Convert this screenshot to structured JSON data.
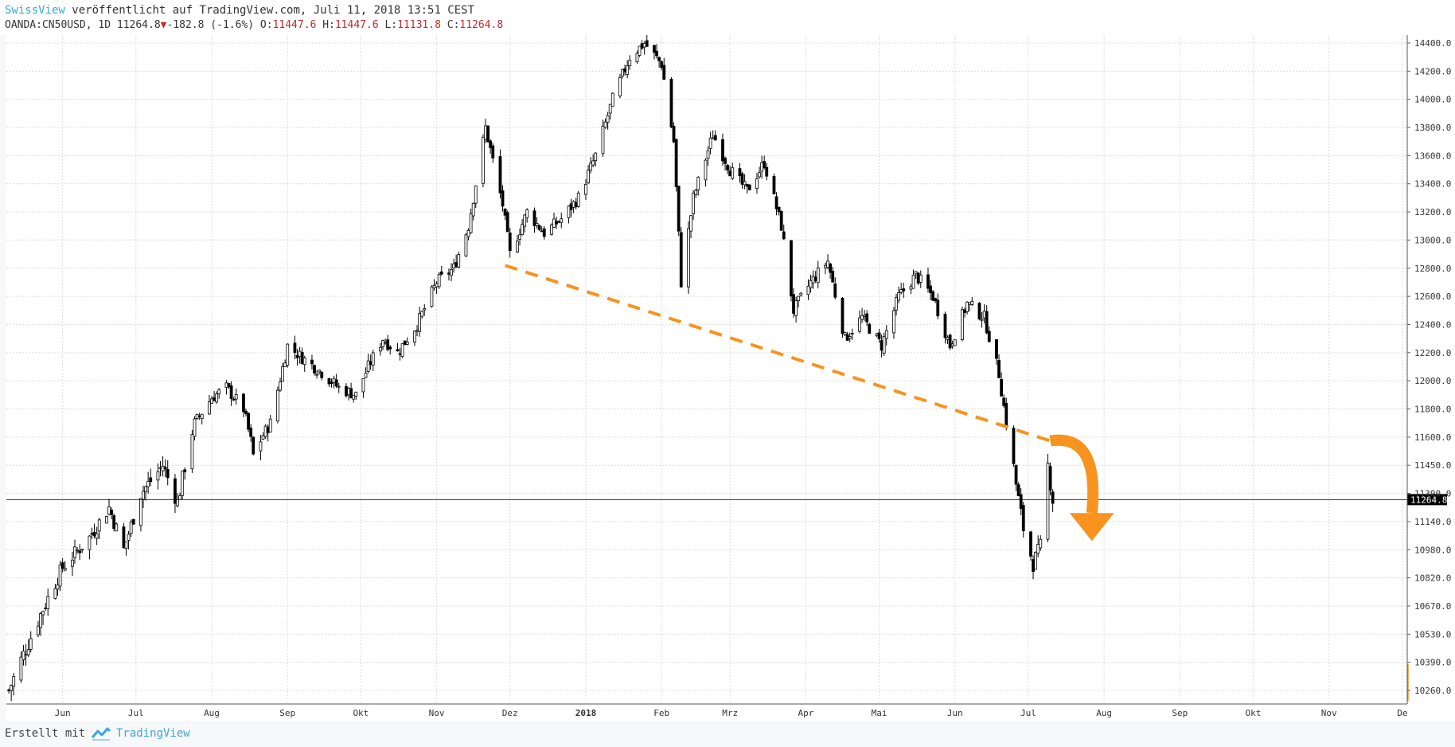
{
  "header": {
    "author": "SwissView",
    "published_text": "veröffentlicht auf TradingView.com, Juli 11, 2018 13:51 CEST",
    "symbol_text": "OANDA:CN50USD, 1D 11264.8",
    "change_arrow": "▼",
    "change_text": "-182.8 (-1.6%)",
    "o_label": "O:",
    "o_value": "11447.6",
    "h_label": "H:",
    "h_value": "11447.6",
    "l_label": "L:",
    "l_value": "11131.8",
    "c_label": "C:",
    "c_value": "11264.8"
  },
  "footer": {
    "made_with": "Erstellt mit",
    "brand": "TradingView"
  },
  "colors": {
    "candle": "#000000",
    "trendline": "#f7931e",
    "arrow": "#f7931e",
    "price_label_bg": "#000000",
    "link": "#3aa7d8",
    "down": "#c62828"
  },
  "chart_data": {
    "type": "candlestick",
    "symbol": "OANDA:CN50USD",
    "interval": "1D",
    "last_price": 11264.8,
    "last_price_label": "11264.8",
    "y_ticks": [
      {
        "label": "14400.0",
        "value": 14400
      },
      {
        "label": "14200.0",
        "value": 14200
      },
      {
        "label": "14000.0",
        "value": 14000
      },
      {
        "label": "13800.0",
        "value": 13800
      },
      {
        "label": "13600.0",
        "value": 13600
      },
      {
        "label": "13400.0",
        "value": 13400
      },
      {
        "label": "13200.0",
        "value": 13200
      },
      {
        "label": "13000.0",
        "value": 13000
      },
      {
        "label": "12800.0",
        "value": 12800
      },
      {
        "label": "12600.0",
        "value": 12600
      },
      {
        "label": "12400.0",
        "value": 12400
      },
      {
        "label": "12200.0",
        "value": 12200
      },
      {
        "label": "12000.0",
        "value": 12000
      },
      {
        "label": "11800.0",
        "value": 11800
      },
      {
        "label": "11600.0",
        "value": 11600
      },
      {
        "label": "11450.0",
        "value": 11450
      },
      {
        "label": "11300.0",
        "value": 11300
      },
      {
        "label": "11140.0",
        "value": 11140
      },
      {
        "label": "10980.0",
        "value": 10980
      },
      {
        "label": "10820.0",
        "value": 10820
      },
      {
        "label": "10670.0",
        "value": 10670
      },
      {
        "label": "10530.0",
        "value": 10530
      },
      {
        "label": "10390.0",
        "value": 10390
      },
      {
        "label": "10260.0",
        "value": 10260
      }
    ],
    "x_ticks": [
      {
        "label": "Jun",
        "date": "2017-06-01"
      },
      {
        "label": "Jul",
        "date": "2017-07-01"
      },
      {
        "label": "Aug",
        "date": "2017-08-01"
      },
      {
        "label": "Sep",
        "date": "2017-09-01"
      },
      {
        "label": "Okt",
        "date": "2017-10-01"
      },
      {
        "label": "Nov",
        "date": "2017-11-01"
      },
      {
        "label": "Dez",
        "date": "2017-12-01"
      },
      {
        "label": "2018",
        "date": "2018-01-01"
      },
      {
        "label": "Feb",
        "date": "2018-02-01"
      },
      {
        "label": "Mrz",
        "date": "2018-03-01"
      },
      {
        "label": "Apr",
        "date": "2018-04-01"
      },
      {
        "label": "Mai",
        "date": "2018-05-01"
      },
      {
        "label": "Jun",
        "date": "2018-06-01"
      },
      {
        "label": "Jul",
        "date": "2018-07-01"
      },
      {
        "label": "Aug",
        "date": "2018-08-01"
      },
      {
        "label": "Sep",
        "date": "2018-09-01"
      },
      {
        "label": "Okt",
        "date": "2018-10-01"
      },
      {
        "label": "Nov",
        "date": "2018-11-01"
      },
      {
        "label": "De",
        "date": "2018-12-01"
      }
    ],
    "x_range": [
      "2017-05-09",
      "2018-12-03"
    ],
    "closes": [
      {
        "date": "2017-05-10",
        "close": 10260
      },
      {
        "date": "2017-05-22",
        "close": 10600
      },
      {
        "date": "2017-06-01",
        "close": 10880
      },
      {
        "date": "2017-06-12",
        "close": 11050
      },
      {
        "date": "2017-06-20",
        "close": 11220
      },
      {
        "date": "2017-06-26",
        "close": 10980
      },
      {
        "date": "2017-07-03",
        "close": 11300
      },
      {
        "date": "2017-07-12",
        "close": 11450
      },
      {
        "date": "2017-07-18",
        "close": 11250
      },
      {
        "date": "2017-07-25",
        "close": 11700
      },
      {
        "date": "2017-08-01",
        "close": 11880
      },
      {
        "date": "2017-08-07",
        "close": 11950
      },
      {
        "date": "2017-08-14",
        "close": 11800
      },
      {
        "date": "2017-08-18",
        "close": 11500
      },
      {
        "date": "2017-08-25",
        "close": 11700
      },
      {
        "date": "2017-09-01",
        "close": 12250
      },
      {
        "date": "2017-09-08",
        "close": 12150
      },
      {
        "date": "2017-09-15",
        "close": 12060
      },
      {
        "date": "2017-09-22",
        "close": 11950
      },
      {
        "date": "2017-09-29",
        "close": 11900
      },
      {
        "date": "2017-10-04",
        "close": 12100
      },
      {
        "date": "2017-10-10",
        "close": 12300
      },
      {
        "date": "2017-10-16",
        "close": 12200
      },
      {
        "date": "2017-10-24",
        "close": 12400
      },
      {
        "date": "2017-11-01",
        "close": 12700
      },
      {
        "date": "2017-11-08",
        "close": 12800
      },
      {
        "date": "2017-11-14",
        "close": 13100
      },
      {
        "date": "2017-11-21",
        "close": 13800
      },
      {
        "date": "2017-11-28",
        "close": 13250
      },
      {
        "date": "2017-12-01",
        "close": 12900
      },
      {
        "date": "2017-12-08",
        "close": 13200
      },
      {
        "date": "2017-12-15",
        "close": 13050
      },
      {
        "date": "2017-12-22",
        "close": 13150
      },
      {
        "date": "2017-12-29",
        "close": 13300
      },
      {
        "date": "2018-01-05",
        "close": 13600
      },
      {
        "date": "2018-01-12",
        "close": 14000
      },
      {
        "date": "2018-01-19",
        "close": 14300
      },
      {
        "date": "2018-01-25",
        "close": 14400
      },
      {
        "date": "2018-02-01",
        "close": 14250
      },
      {
        "date": "2018-02-06",
        "close": 13700
      },
      {
        "date": "2018-02-09",
        "close": 12700
      },
      {
        "date": "2018-02-14",
        "close": 13300
      },
      {
        "date": "2018-02-22",
        "close": 13750
      },
      {
        "date": "2018-03-01",
        "close": 13500
      },
      {
        "date": "2018-03-08",
        "close": 13350
      },
      {
        "date": "2018-03-15",
        "close": 13550
      },
      {
        "date": "2018-03-22",
        "close": 13100
      },
      {
        "date": "2018-03-27",
        "close": 12500
      },
      {
        "date": "2018-04-03",
        "close": 12700
      },
      {
        "date": "2018-04-10",
        "close": 12850
      },
      {
        "date": "2018-04-17",
        "close": 12300
      },
      {
        "date": "2018-04-24",
        "close": 12450
      },
      {
        "date": "2018-05-02",
        "close": 12250
      },
      {
        "date": "2018-05-09",
        "close": 12600
      },
      {
        "date": "2018-05-16",
        "close": 12750
      },
      {
        "date": "2018-05-23",
        "close": 12600
      },
      {
        "date": "2018-05-30",
        "close": 12250
      },
      {
        "date": "2018-06-06",
        "close": 12550
      },
      {
        "date": "2018-06-13",
        "close": 12450
      },
      {
        "date": "2018-06-19",
        "close": 12050
      },
      {
        "date": "2018-06-22",
        "close": 11700
      },
      {
        "date": "2018-06-26",
        "close": 11350
      },
      {
        "date": "2018-06-29",
        "close": 11100
      },
      {
        "date": "2018-07-03",
        "close": 10900
      },
      {
        "date": "2018-07-06",
        "close": 11000
      },
      {
        "date": "2018-07-09",
        "close": 11447.6
      },
      {
        "date": "2018-07-11",
        "close": 11264.8
      }
    ],
    "trendline": {
      "from": {
        "date": "2017-11-29",
        "value": 12820
      },
      "to": {
        "date": "2018-07-10",
        "value": 11580
      }
    },
    "annotation_arrow": {
      "from": {
        "date": "2018-07-10",
        "value": 11580
      },
      "to": {
        "date": "2018-07-27",
        "value": 11030
      }
    }
  }
}
